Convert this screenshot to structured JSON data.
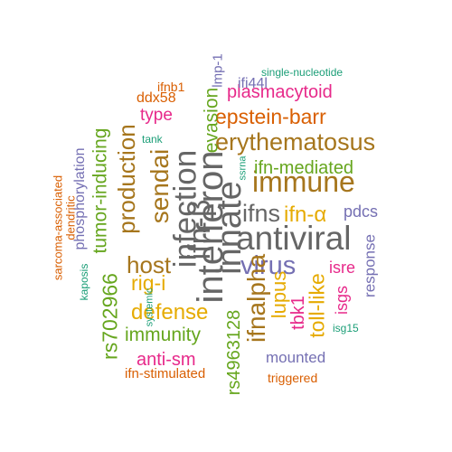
{
  "colors": {
    "grey": "#666666",
    "brown": "#A6761D",
    "green": "#66A61E",
    "orange": "#D95F02",
    "pink": "#E7298A",
    "purple": "#7570B3",
    "gold": "#E6AB02",
    "teal": "#1B9E77"
  },
  "words": {
    "antiviral": "antiviral",
    "immune": "immune",
    "erythematosus": "erythematosus",
    "virus": "virus",
    "host": "host",
    "ifns": "ifns",
    "defense": "defense",
    "epstein_barr": "epstein-barr",
    "ifn_alpha": "ifn-α",
    "rig_i": "rig-i",
    "immunity": "immunity",
    "ifn_mediated": "ifn-mediated",
    "plasmacytoid": "plasmacytoid",
    "anti_sm": "anti-sm",
    "type": "type",
    "pdcs": "pdcs",
    "mounted": "mounted",
    "isre": "isre",
    "ddx58": "ddx58",
    "ifi44l": "ifi44l",
    "ifn_stimulated": "ifn-stimulated",
    "ifnb1": "ifnb1",
    "triggered": "triggered",
    "single_nucleotide": "single-nucleotide",
    "tank": "tank",
    "isg15": "isg15",
    "interferon": "interferon",
    "innate": "innate",
    "infection": "infection",
    "ifn_beta": "ifn-β",
    "sendai": "sendai",
    "production": "production",
    "ifnalpha": "ifnalpha",
    "evasion": "evasion",
    "lupus": "lupus",
    "toll_like": "toll-like",
    "rs702966": "rs702966",
    "rs4963128": "rs4963128",
    "tumor_inducing": "tumor-inducing",
    "tbk1": "tbk1",
    "response": "response",
    "isgs": "isgs",
    "phosphorylation": "phosphorylation",
    "lmp_1": "lmp-1",
    "sarcoma_associated": "sarcoma-associated",
    "dendritic": "dendritic",
    "kaposis": "kaposis",
    "systemic": "systemic",
    "ssrna": "ssrna"
  }
}
